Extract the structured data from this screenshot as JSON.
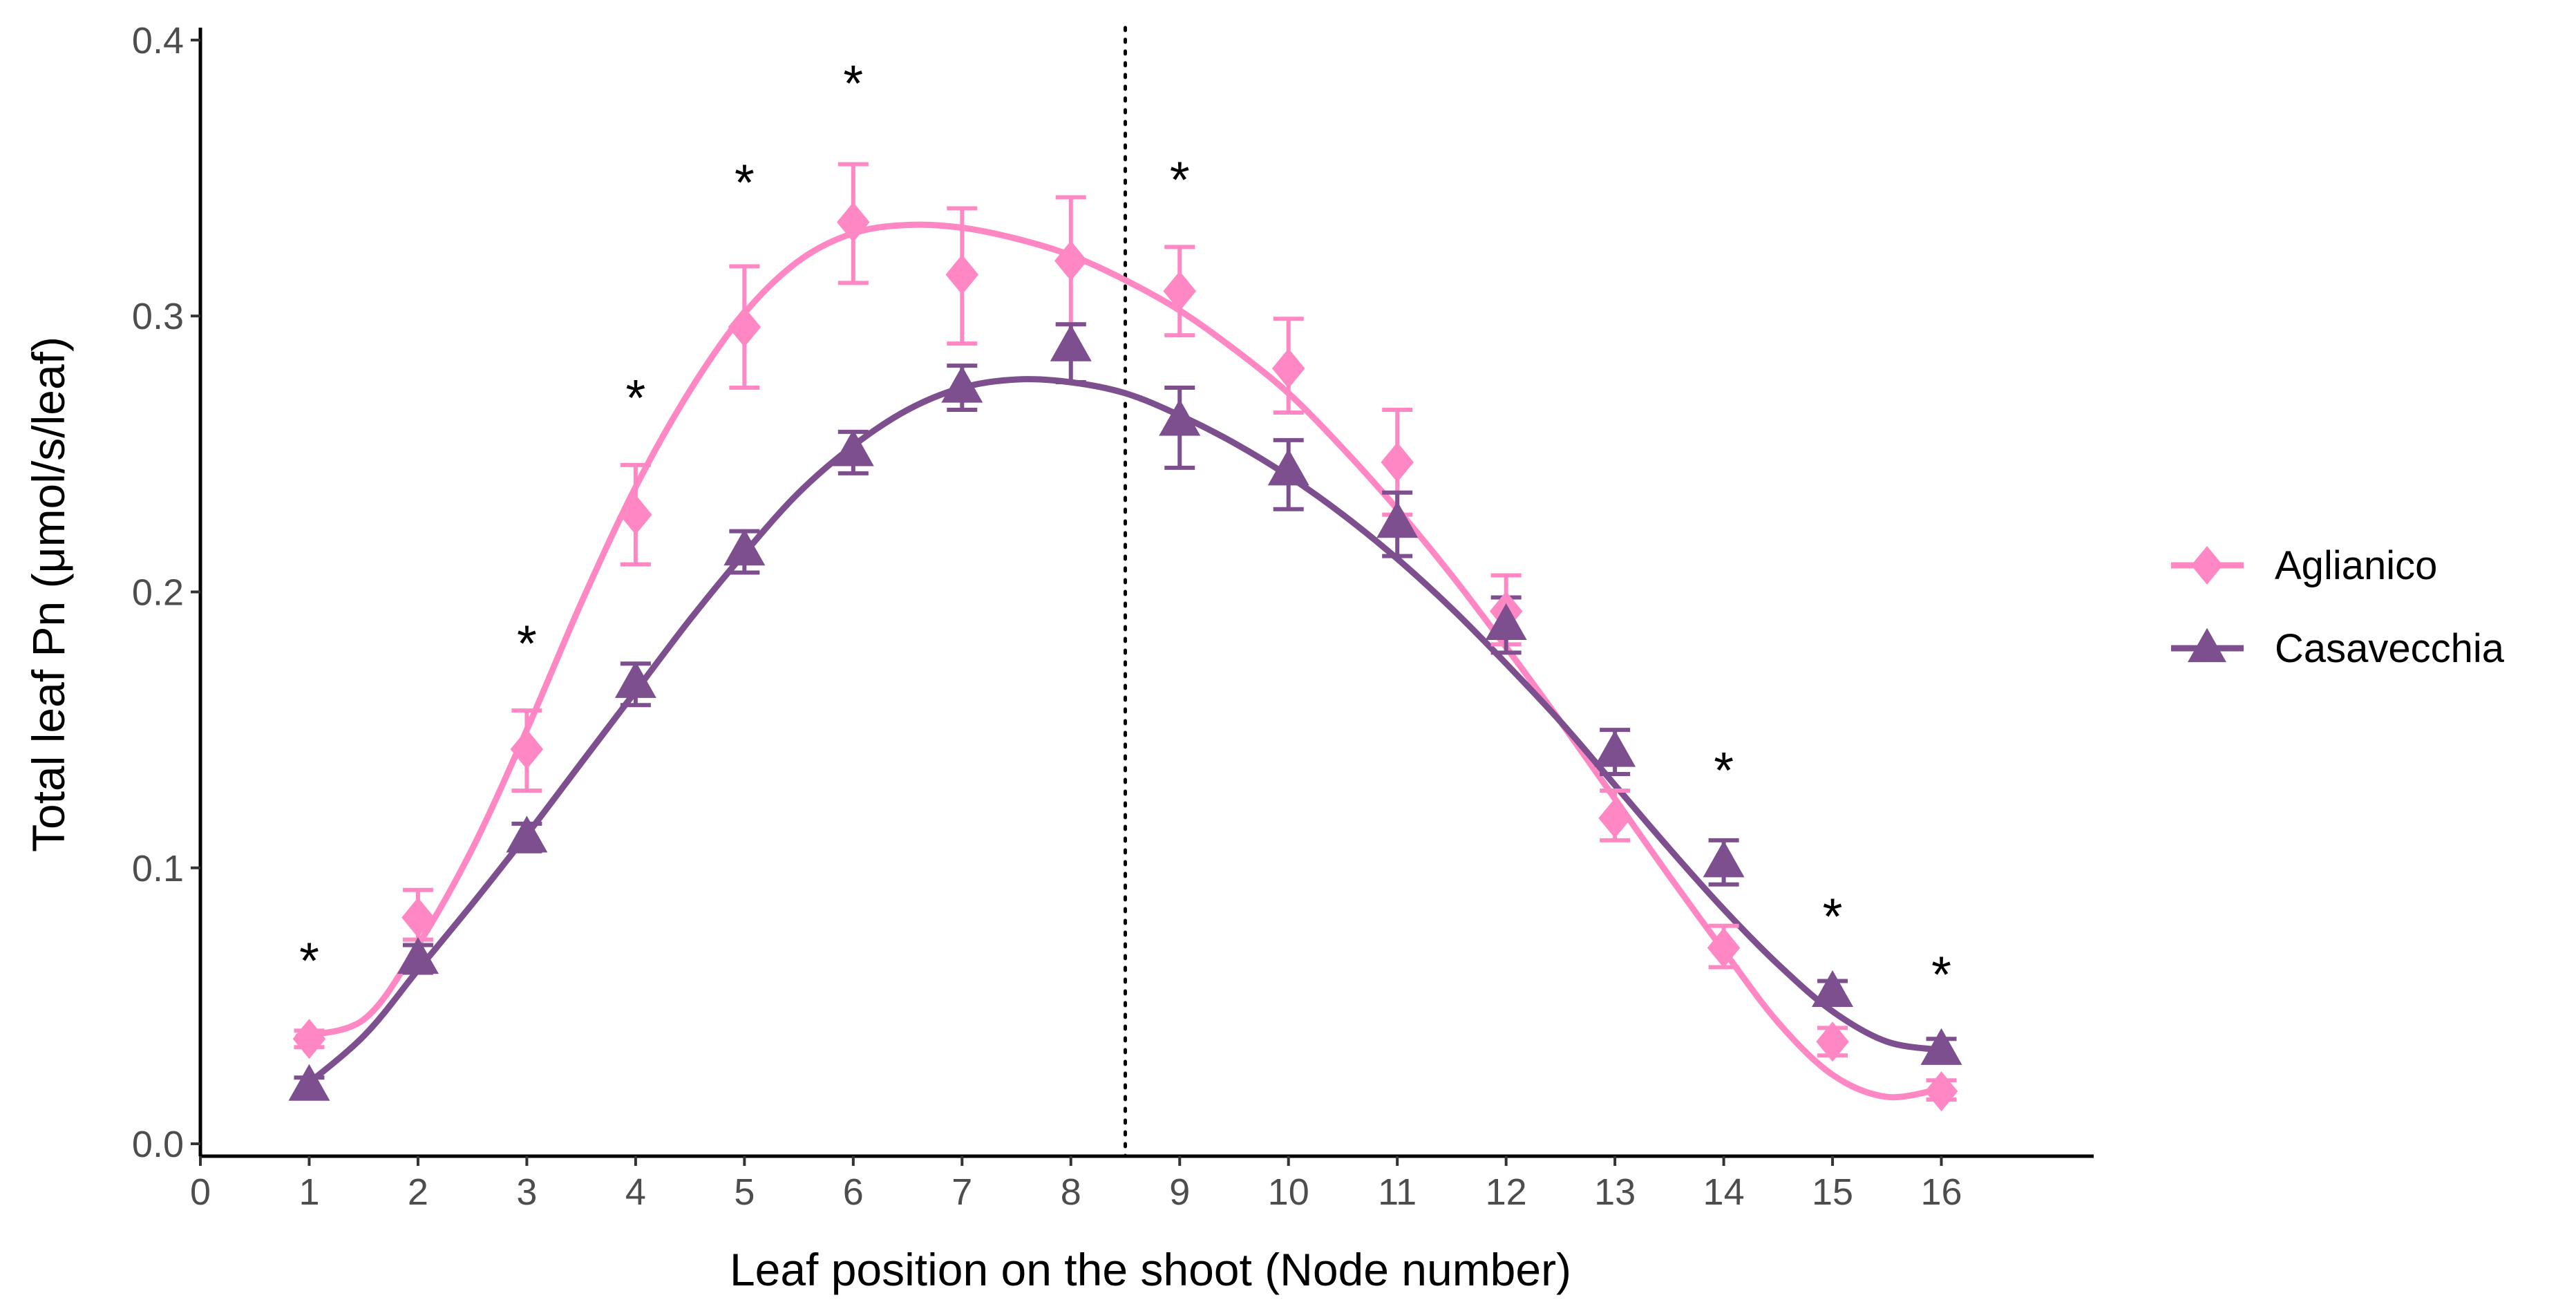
{
  "chart_data": {
    "type": "scatter",
    "title": "",
    "xlabel": "Leaf position on the shoot (Node number)",
    "ylabel": "Total leaf Pn (μmol/s/leaf)",
    "xlim": [
      0,
      17.4
    ],
    "ylim": [
      -0.0045,
      0.4045
    ],
    "x_ticks": [
      "0",
      "1",
      "2",
      "3",
      "4",
      "5",
      "6",
      "7",
      "8",
      "9",
      "10",
      "11",
      "12",
      "13",
      "14",
      "15",
      "16"
    ],
    "y_ticks": [
      "0.0",
      "0.1",
      "0.2",
      "0.3",
      "0.4"
    ],
    "grid": false,
    "legend_position": "right",
    "vline": {
      "x": 8.5,
      "style": "dotted"
    },
    "colors": {
      "Aglianico": "#ff88c4",
      "Casavecchia": "#7d4f8e"
    },
    "series": [
      {
        "name": "Aglianico",
        "marker": "diamond",
        "x": [
          1,
          2,
          3,
          4,
          5,
          6,
          7,
          8,
          9,
          10,
          11,
          12,
          13,
          14,
          15,
          16
        ],
        "values": [
          0.038,
          0.082,
          0.143,
          0.228,
          0.296,
          0.334,
          0.315,
          0.32,
          0.309,
          0.281,
          0.247,
          0.193,
          0.118,
          0.071,
          0.037,
          0.019
        ],
        "err_low": [
          0.035,
          0.074,
          0.128,
          0.21,
          0.274,
          0.312,
          0.29,
          0.297,
          0.293,
          0.265,
          0.228,
          0.181,
          0.11,
          0.064,
          0.032,
          0.016
        ],
        "err_high": [
          0.041,
          0.092,
          0.157,
          0.246,
          0.318,
          0.355,
          0.339,
          0.343,
          0.325,
          0.299,
          0.266,
          0.206,
          0.128,
          0.079,
          0.042,
          0.023
        ],
        "fit": [
          [
            0.9,
            0.039
          ],
          [
            1.5,
            0.045
          ],
          [
            2,
            0.072
          ],
          [
            2.5,
            0.107
          ],
          [
            3,
            0.15
          ],
          [
            3.5,
            0.196
          ],
          [
            4,
            0.238
          ],
          [
            4.5,
            0.273
          ],
          [
            5,
            0.301
          ],
          [
            5.5,
            0.32
          ],
          [
            6,
            0.33
          ],
          [
            6.5,
            0.333
          ],
          [
            7,
            0.332
          ],
          [
            7.5,
            0.328
          ],
          [
            8,
            0.322
          ],
          [
            8.5,
            0.313
          ],
          [
            9,
            0.302
          ],
          [
            9.5,
            0.288
          ],
          [
            10,
            0.272
          ],
          [
            10.5,
            0.252
          ],
          [
            11,
            0.23
          ],
          [
            11.5,
            0.206
          ],
          [
            12,
            0.18
          ],
          [
            12.5,
            0.153
          ],
          [
            13,
            0.125
          ],
          [
            13.5,
            0.097
          ],
          [
            14,
            0.07
          ],
          [
            14.5,
            0.044
          ],
          [
            15,
            0.025
          ],
          [
            15.5,
            0.017
          ],
          [
            16,
            0.02
          ]
        ]
      },
      {
        "name": "Casavecchia",
        "marker": "triangle",
        "x": [
          1,
          2,
          3,
          4,
          5,
          6,
          7,
          8,
          9,
          10,
          11,
          12,
          13,
          14,
          15,
          16
        ],
        "values": [
          0.021,
          0.067,
          0.111,
          0.167,
          0.215,
          0.251,
          0.274,
          0.289,
          0.262,
          0.244,
          0.225,
          0.188,
          0.142,
          0.102,
          0.055,
          0.034
        ],
        "err_low": [
          0.018,
          0.062,
          0.106,
          0.159,
          0.207,
          0.243,
          0.266,
          0.276,
          0.245,
          0.23,
          0.213,
          0.178,
          0.134,
          0.094,
          0.051,
          0.03
        ],
        "err_high": [
          0.024,
          0.072,
          0.116,
          0.174,
          0.222,
          0.258,
          0.282,
          0.297,
          0.274,
          0.255,
          0.236,
          0.198,
          0.15,
          0.11,
          0.059,
          0.038
        ],
        "fit": [
          [
            0.9,
            0.019
          ],
          [
            1.5,
            0.039
          ],
          [
            2,
            0.063
          ],
          [
            2.5,
            0.087
          ],
          [
            3,
            0.112
          ],
          [
            3.5,
            0.138
          ],
          [
            4,
            0.164
          ],
          [
            4.5,
            0.19
          ],
          [
            5,
            0.214
          ],
          [
            5.5,
            0.236
          ],
          [
            6,
            0.253
          ],
          [
            6.5,
            0.266
          ],
          [
            7,
            0.274
          ],
          [
            7.5,
            0.277
          ],
          [
            8,
            0.276
          ],
          [
            8.5,
            0.272
          ],
          [
            9,
            0.264
          ],
          [
            9.5,
            0.254
          ],
          [
            10,
            0.242
          ],
          [
            10.5,
            0.228
          ],
          [
            11,
            0.212
          ],
          [
            11.5,
            0.194
          ],
          [
            12,
            0.174
          ],
          [
            12.5,
            0.153
          ],
          [
            13,
            0.13
          ],
          [
            13.5,
            0.107
          ],
          [
            14,
            0.085
          ],
          [
            14.5,
            0.065
          ],
          [
            15,
            0.048
          ],
          [
            15.5,
            0.037
          ],
          [
            16,
            0.034
          ]
        ]
      }
    ],
    "annotations": [
      {
        "text": "*",
        "x": 1,
        "y": 0.07
      },
      {
        "text": "*",
        "x": 3,
        "y": 0.185
      },
      {
        "text": "*",
        "x": 4,
        "y": 0.274
      },
      {
        "text": "*",
        "x": 5,
        "y": 0.352
      },
      {
        "text": "*",
        "x": 6,
        "y": 0.388
      },
      {
        "text": "*",
        "x": 9,
        "y": 0.353
      },
      {
        "text": "*",
        "x": 14,
        "y": 0.139
      },
      {
        "text": "*",
        "x": 15,
        "y": 0.086
      },
      {
        "text": "*",
        "x": 16,
        "y": 0.065
      }
    ]
  }
}
